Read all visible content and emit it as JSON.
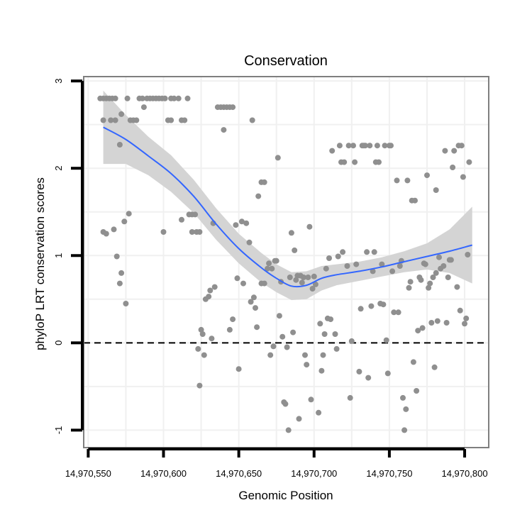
{
  "colors": {
    "background": "#ffffff",
    "panel_border": "#7f7f7f",
    "grid": "#f0f0f0",
    "points": "#8f8f8f",
    "smooth_line": "#3366ff",
    "confidence_band": "#d4d4d4",
    "zero_line": "#000000"
  },
  "chart_data": {
    "type": "scatter",
    "title": "Conservation",
    "xlabel": "Genomic Position",
    "ylabel": "phyloP LRT conservation scores",
    "xlim": [
      14970547,
      14970816
    ],
    "ylim": [
      -1.2,
      3.05
    ],
    "x_ticks": [
      14970550,
      14970600,
      14970650,
      14970700,
      14970750,
      14970800
    ],
    "x_tick_labels": [
      "14,970,550",
      "14,970,600",
      "14,970,650",
      "14,970,700",
      "14,970,750",
      "14,970,800"
    ],
    "y_ticks": [
      -1,
      0,
      1,
      2,
      3
    ],
    "y_tick_labels": [
      "-1",
      "0",
      "1",
      "2",
      "3"
    ],
    "reference_line": {
      "y": 0,
      "style": "dashed"
    },
    "points": [
      [
        14970558,
        2.8
      ],
      [
        14970560,
        2.8
      ],
      [
        14970562,
        2.8
      ],
      [
        14970564,
        2.8
      ],
      [
        14970566,
        2.8
      ],
      [
        14970568,
        2.8
      ],
      [
        14970560,
        2.55
      ],
      [
        14970565,
        2.55
      ],
      [
        14970568,
        2.55
      ],
      [
        14970572,
        2.62
      ],
      [
        14970571,
        2.27
      ],
      [
        14970560,
        1.27
      ],
      [
        14970562,
        1.25
      ],
      [
        14970567,
        1.3
      ],
      [
        14970569,
        0.99
      ],
      [
        14970571,
        0.68
      ],
      [
        14970572,
        0.8
      ],
      [
        14970574,
        1.39
      ],
      [
        14970575,
        0.45
      ],
      [
        14970577,
        1.48
      ],
      [
        14970576,
        2.8
      ],
      [
        14970578,
        2.55
      ],
      [
        14970580,
        2.55
      ],
      [
        14970582,
        2.55
      ],
      [
        14970584,
        2.8
      ],
      [
        14970586,
        2.8
      ],
      [
        14970587,
        2.7
      ],
      [
        14970589,
        2.8
      ],
      [
        14970591,
        2.8
      ],
      [
        14970593,
        2.8
      ],
      [
        14970595,
        2.8
      ],
      [
        14970597,
        2.8
      ],
      [
        14970599,
        2.8
      ],
      [
        14970601,
        2.8
      ],
      [
        14970603,
        2.55
      ],
      [
        14970605,
        2.55
      ],
      [
        14970605,
        2.8
      ],
      [
        14970607,
        2.8
      ],
      [
        14970610,
        2.8
      ],
      [
        14970612,
        2.55
      ],
      [
        14970614,
        2.55
      ],
      [
        14970616,
        2.8
      ],
      [
        14970600,
        1.27
      ],
      [
        14970612,
        1.41
      ],
      [
        14970617,
        1.47
      ],
      [
        14970619,
        1.47
      ],
      [
        14970621,
        1.47
      ],
      [
        14970619,
        1.27
      ],
      [
        14970622,
        1.27
      ],
      [
        14970624,
        1.27
      ],
      [
        14970623,
        -0.07
      ],
      [
        14970624,
        -0.49
      ],
      [
        14970625,
        0.15
      ],
      [
        14970626,
        0.1
      ],
      [
        14970627,
        -0.14
      ],
      [
        14970628,
        0.5
      ],
      [
        14970630,
        0.53
      ],
      [
        14970631,
        0.6
      ],
      [
        14970632,
        0.05
      ],
      [
        14970633,
        1.37
      ],
      [
        14970634,
        0.64
      ],
      [
        14970636,
        2.7
      ],
      [
        14970638,
        2.7
      ],
      [
        14970640,
        2.7
      ],
      [
        14970642,
        2.7
      ],
      [
        14970644,
        2.7
      ],
      [
        14970646,
        2.7
      ],
      [
        14970640,
        2.44
      ],
      [
        14970644,
        0.15
      ],
      [
        14970646,
        0.27
      ],
      [
        14970648,
        1.35
      ],
      [
        14970649,
        0.74
      ],
      [
        14970650,
        -0.3
      ],
      [
        14970652,
        1.39
      ],
      [
        14970653,
        0.68
      ],
      [
        14970655,
        1.37
      ],
      [
        14970657,
        1.15
      ],
      [
        14970658,
        0.47
      ],
      [
        14970659,
        2.55
      ],
      [
        14970660,
        0.52
      ],
      [
        14970661,
        0.4
      ],
      [
        14970662,
        0.18
      ],
      [
        14970663,
        1.68
      ],
      [
        14970665,
        1.84
      ],
      [
        14970667,
        1.84
      ],
      [
        14970665,
        0.68
      ],
      [
        14970667,
        0.68
      ],
      [
        14970669,
        0.85
      ],
      [
        14970670,
        0.91
      ],
      [
        14970671,
        -0.14
      ],
      [
        14970672,
        0.85
      ],
      [
        14970673,
        -0.04
      ],
      [
        14970674,
        0.94
      ],
      [
        14970675,
        0.94
      ],
      [
        14970676,
        2.12
      ],
      [
        14970677,
        0.31
      ],
      [
        14970678,
        0.7
      ],
      [
        14970679,
        0.07
      ],
      [
        14970680,
        -0.68
      ],
      [
        14970681,
        -0.7
      ],
      [
        14970682,
        -0.05
      ],
      [
        14970683,
        -1.0
      ],
      [
        14970684,
        0.75
      ],
      [
        14970685,
        1.26
      ],
      [
        14970686,
        0.12
      ],
      [
        14970687,
        1.06
      ],
      [
        14970688,
        0.72
      ],
      [
        14970689,
        0.77
      ],
      [
        14970690,
        -0.87
      ],
      [
        14970691,
        0.77
      ],
      [
        14970692,
        0.69
      ],
      [
        14970693,
        0.75
      ],
      [
        14970694,
        -0.14
      ],
      [
        14970695,
        -0.25
      ],
      [
        14970696,
        0.75
      ],
      [
        14970697,
        1.33
      ],
      [
        14970698,
        -0.65
      ],
      [
        14970699,
        0.62
      ],
      [
        14970700,
        0.76
      ],
      [
        14970701,
        0.67
      ],
      [
        14970703,
        -0.8
      ],
      [
        14970704,
        0.22
      ],
      [
        14970705,
        -0.32
      ],
      [
        14970706,
        -0.14
      ],
      [
        14970707,
        0.1
      ],
      [
        14970708,
        0.85
      ],
      [
        14970709,
        0.28
      ],
      [
        14970710,
        0.97
      ],
      [
        14970711,
        0.27
      ],
      [
        14970712,
        2.2
      ],
      [
        14970714,
        0.1
      ],
      [
        14970715,
        -0.07
      ],
      [
        14970716,
        0.99
      ],
      [
        14970717,
        2.26
      ],
      [
        14970718,
        2.07
      ],
      [
        14970719,
        1.04
      ],
      [
        14970720,
        2.07
      ],
      [
        14970722,
        0.88
      ],
      [
        14970723,
        2.26
      ],
      [
        14970724,
        -0.63
      ],
      [
        14970725,
        0.02
      ],
      [
        14970726,
        2.26
      ],
      [
        14970727,
        2.07
      ],
      [
        14970728,
        0.9
      ],
      [
        14970730,
        -0.33
      ],
      [
        14970731,
        0.39
      ],
      [
        14970732,
        2.26
      ],
      [
        14970733,
        2.26
      ],
      [
        14970734,
        2.26
      ],
      [
        14970735,
        1.04
      ],
      [
        14970736,
        -0.4
      ],
      [
        14970737,
        2.26
      ],
      [
        14970738,
        0.42
      ],
      [
        14970739,
        0.82
      ],
      [
        14970740,
        1.04
      ],
      [
        14970741,
        2.07
      ],
      [
        14970742,
        2.26
      ],
      [
        14970743,
        2.07
      ],
      [
        14970745,
        0.9
      ],
      [
        14970746,
        0.44
      ],
      [
        14970747,
        2.26
      ],
      [
        14970748,
        0.03
      ],
      [
        14970749,
        -0.35
      ],
      [
        14970750,
        2.26
      ],
      [
        14970751,
        2.26
      ],
      [
        14970752,
        0.82
      ],
      [
        14970753,
        0.35
      ],
      [
        14970755,
        1.86
      ],
      [
        14970756,
        0.35
      ],
      [
        14970757,
        0.88
      ],
      [
        14970758,
        0.94
      ],
      [
        14970759,
        -0.63
      ],
      [
        14970760,
        -1.0
      ],
      [
        14970761,
        -0.76
      ],
      [
        14970762,
        1.86
      ],
      [
        14970763,
        0.63
      ],
      [
        14970764,
        0.7
      ],
      [
        14970765,
        1.63
      ],
      [
        14970766,
        -0.22
      ],
      [
        14970767,
        1.63
      ],
      [
        14970768,
        -0.55
      ],
      [
        14970769,
        0.14
      ],
      [
        14970770,
        0.75
      ],
      [
        14970771,
        0.72
      ],
      [
        14970772,
        0.17
      ],
      [
        14970773,
        0.91
      ],
      [
        14970774,
        0.9
      ],
      [
        14970775,
        1.92
      ],
      [
        14970776,
        0.63
      ],
      [
        14970777,
        0.68
      ],
      [
        14970778,
        0.23
      ],
      [
        14970779,
        0.75
      ],
      [
        14970780,
        -0.28
      ],
      [
        14970781,
        1.75
      ],
      [
        14970782,
        0.25
      ],
      [
        14970783,
        0.98
      ],
      [
        14970784,
        0.85
      ],
      [
        14970786,
        0.88
      ],
      [
        14970787,
        2.2
      ],
      [
        14970788,
        0.23
      ],
      [
        14970789,
        0.75
      ],
      [
        14970790,
        0.95
      ],
      [
        14970791,
        0.95
      ],
      [
        14970792,
        2.01
      ],
      [
        14970793,
        2.2
      ],
      [
        14970795,
        0.64
      ],
      [
        14970796,
        2.26
      ],
      [
        14970797,
        0.37
      ],
      [
        14970798,
        2.26
      ],
      [
        14970799,
        1.9
      ],
      [
        14970800,
        0.22
      ],
      [
        14970801,
        0.28
      ],
      [
        14970802,
        1.01
      ],
      [
        14970803,
        2.07
      ],
      [
        14970781,
        0.8
      ],
      [
        14970744,
        0.45
      ]
    ],
    "smooth": {
      "x": [
        14970560,
        14970575,
        14970590,
        14970605,
        14970620,
        14970635,
        14970650,
        14970665,
        14970675,
        14970685,
        14970695,
        14970705,
        14970715,
        14970730,
        14970745,
        14970760,
        14970775,
        14970790,
        14970805
      ],
      "y": [
        2.47,
        2.33,
        2.14,
        1.94,
        1.68,
        1.36,
        1.08,
        0.86,
        0.74,
        0.65,
        0.66,
        0.74,
        0.78,
        0.82,
        0.87,
        0.93,
        0.99,
        1.05,
        1.12
      ],
      "lower": [
        2.05,
        2.05,
        1.92,
        1.73,
        1.49,
        1.18,
        0.91,
        0.69,
        0.58,
        0.49,
        0.5,
        0.6,
        0.66,
        0.71,
        0.76,
        0.81,
        0.84,
        0.8,
        0.68
      ],
      "upper": [
        2.89,
        2.61,
        2.36,
        2.15,
        1.87,
        1.54,
        1.25,
        1.03,
        0.9,
        0.81,
        0.82,
        0.88,
        0.9,
        0.93,
        0.98,
        1.05,
        1.14,
        1.3,
        1.56
      ]
    }
  }
}
